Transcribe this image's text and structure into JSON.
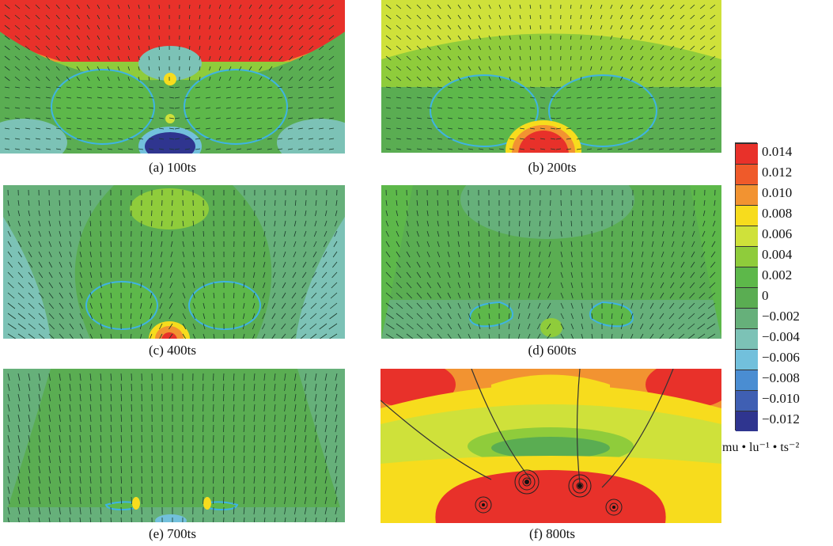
{
  "panels": [
    {
      "id": "a",
      "caption": "(a) 100ts"
    },
    {
      "id": "b",
      "caption": "(b) 200ts"
    },
    {
      "id": "c",
      "caption": "(c) 400ts"
    },
    {
      "id": "d",
      "caption": "(d) 600ts"
    },
    {
      "id": "e",
      "caption": "(e) 700ts"
    },
    {
      "id": "f",
      "caption": "(f) 800ts"
    }
  ],
  "legend": {
    "labels": [
      "0.014",
      "0.012",
      "0.010",
      "0.008",
      "0.006",
      "0.004",
      "0.002",
      "0",
      "−0.002",
      "−0.004",
      "−0.006",
      "−0.008",
      "−0.010",
      "−0.012"
    ],
    "colors": [
      "#e8312a",
      "#ef5a2a",
      "#f29331",
      "#f7dc1d",
      "#cfe13a",
      "#8fcc3b",
      "#5db84a",
      "#5aad52",
      "#66b07a",
      "#7cc2b6",
      "#72c0dc",
      "#4a8dd2",
      "#3f5fb3",
      "#2f358f"
    ],
    "units": "mu • lu⁻¹ • ts⁻²"
  }
}
